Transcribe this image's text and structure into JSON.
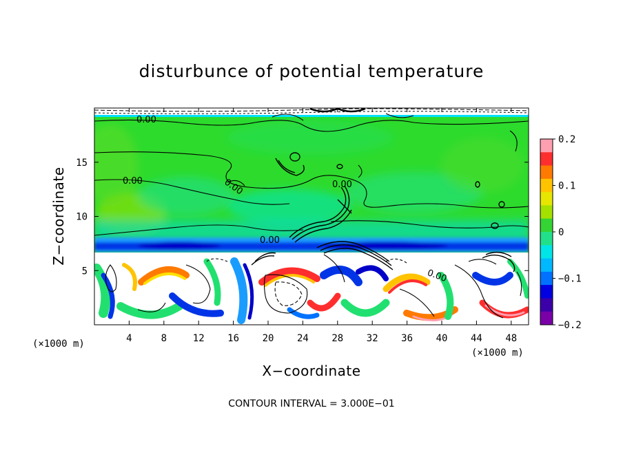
{
  "chart_data": {
    "type": "heatmap",
    "title": "disturbunce of potential temperature",
    "xlabel": "X−coordinate",
    "ylabel": "Z−coordinate",
    "x_unit": "(×1000 m)",
    "x_unit_right": "(×1000 m)",
    "footer": "CONTOUR INTERVAL = 3.000E−01",
    "xlim": [
      0,
      50
    ],
    "ylim": [
      0,
      20
    ],
    "x_ticks": [
      4,
      8,
      12,
      16,
      20,
      24,
      28,
      32,
      36,
      40,
      44,
      48
    ],
    "x_tick_labels": [
      "4",
      "8",
      "12",
      "16",
      "20",
      "24",
      "28",
      "32",
      "36",
      "40",
      "44",
      "48"
    ],
    "y_ticks": [
      5,
      10,
      15
    ],
    "y_tick_labels": [
      "5",
      "10",
      "15"
    ],
    "colorbar": {
      "range": [
        -0.2,
        0.2
      ],
      "tick_values": [
        0.2,
        0.1,
        0,
        -0.1,
        -0.2
      ],
      "tick_labels": [
        "0.2",
        "0.1",
        "0",
        "−0.1",
        "−0.2"
      ],
      "colors": [
        "#ff9fb0",
        "#ff2e2e",
        "#ff7a00",
        "#ffc300",
        "#e6e600",
        "#a4e000",
        "#33d433",
        "#22e08a",
        "#00e5e5",
        "#00b8ff",
        "#0072ff",
        "#0000e0",
        "#3b00a8",
        "#7a00a8"
      ]
    },
    "contour_labels": [
      {
        "text": "0.00",
        "x": 5,
        "y": 19
      },
      {
        "text": "0.00",
        "x": 5,
        "y": 13.2
      },
      {
        "text": "0.00",
        "x": 16.5,
        "y": 12.7
      },
      {
        "text": "0.00",
        "x": 29.5,
        "y": 13.0
      },
      {
        "text": "0.00",
        "x": 20.5,
        "y": 7.9
      },
      {
        "text": "0.00",
        "x": 38.5,
        "y": 4.3
      }
    ],
    "grid": false
  }
}
